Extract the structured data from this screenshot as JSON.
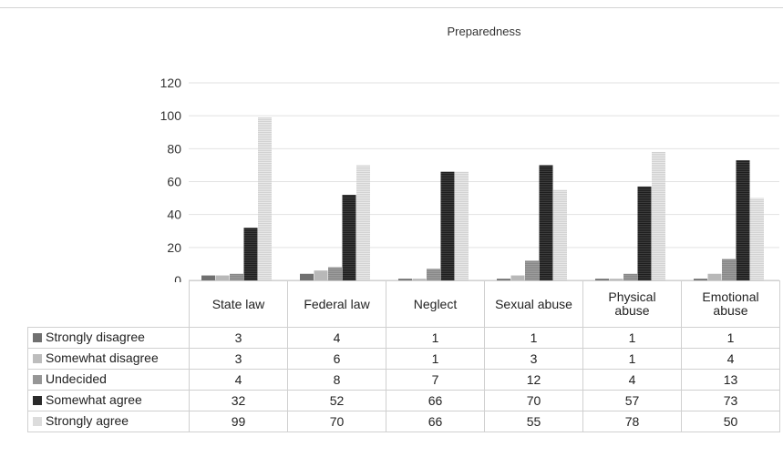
{
  "chart_data": {
    "type": "bar",
    "title": "Preparedness",
    "categories": [
      "State law",
      "Federal law",
      "Neglect",
      "Sexual abuse",
      "Physical abuse",
      "Emotional abuse"
    ],
    "series": [
      {
        "name": "Strongly disagree",
        "values": [
          3,
          4,
          1,
          1,
          1,
          1
        ],
        "color": "#707070"
      },
      {
        "name": "Somewhat disagree",
        "values": [
          3,
          6,
          1,
          3,
          1,
          4
        ],
        "color": "#b5b5b5"
      },
      {
        "name": "Undecided",
        "values": [
          4,
          8,
          7,
          12,
          4,
          13
        ],
        "color": "#969696"
      },
      {
        "name": "Somewhat agree",
        "values": [
          32,
          52,
          66,
          70,
          57,
          73
        ],
        "color": "#3c3c3c"
      },
      {
        "name": "Strongly agree",
        "values": [
          99,
          70,
          66,
          55,
          78,
          50
        ],
        "color": "#dedede"
      }
    ],
    "yticks": [
      0,
      20,
      40,
      60,
      80,
      100,
      120
    ],
    "ylim": [
      0,
      120
    ],
    "grid": true,
    "legend": "data-table"
  }
}
